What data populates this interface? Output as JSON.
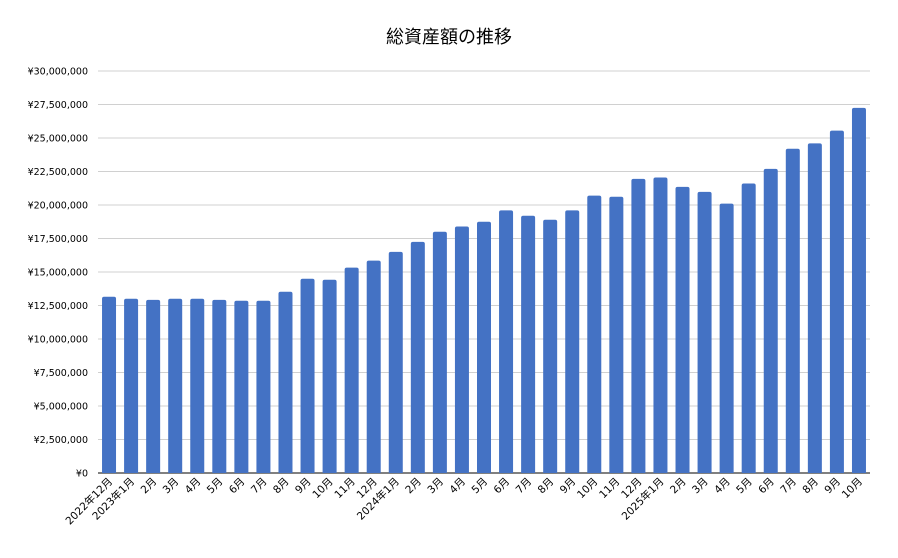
{
  "chart_data": {
    "type": "bar",
    "title": "総資産額の推移",
    "xlabel": "",
    "ylabel": "",
    "ylim": [
      0,
      30000000
    ],
    "ytick_step": 2500000,
    "ytick_labels": [
      "¥0",
      "¥2,500,000",
      "¥5,000,000",
      "¥7,500,000",
      "¥10,000,000",
      "¥12,500,000",
      "¥15,000,000",
      "¥17,500,000",
      "¥20,000,000",
      "¥22,500,000",
      "¥25,000,000",
      "¥27,500,000",
      "¥30,000,000"
    ],
    "grid": true,
    "bar_color": "#4472C4",
    "categories": [
      "2022年12月",
      "2023年1月",
      "2月",
      "3月",
      "4月",
      "5月",
      "6月",
      "7月",
      "8月",
      "9月",
      "10月",
      "11月",
      "12月",
      "2024年1月",
      "2月",
      "3月",
      "4月",
      "5月",
      "6月",
      "7月",
      "8月",
      "9月",
      "10月",
      "11月",
      "12月",
      "2025年1月",
      "2月",
      "3月",
      "4月",
      "5月",
      "6月",
      "7月",
      "8月",
      "9月",
      "10月"
    ],
    "values": [
      13150000,
      13000000,
      12920000,
      13000000,
      13000000,
      12920000,
      12850000,
      12850000,
      13530000,
      14500000,
      14420000,
      15330000,
      15850000,
      16500000,
      17250000,
      18000000,
      18400000,
      18750000,
      19600000,
      19200000,
      18900000,
      19600000,
      20700000,
      20620000,
      21950000,
      22050000,
      21350000,
      20980000,
      20100000,
      21600000,
      22700000,
      24200000,
      24600000,
      25550000,
      27250000
    ]
  }
}
